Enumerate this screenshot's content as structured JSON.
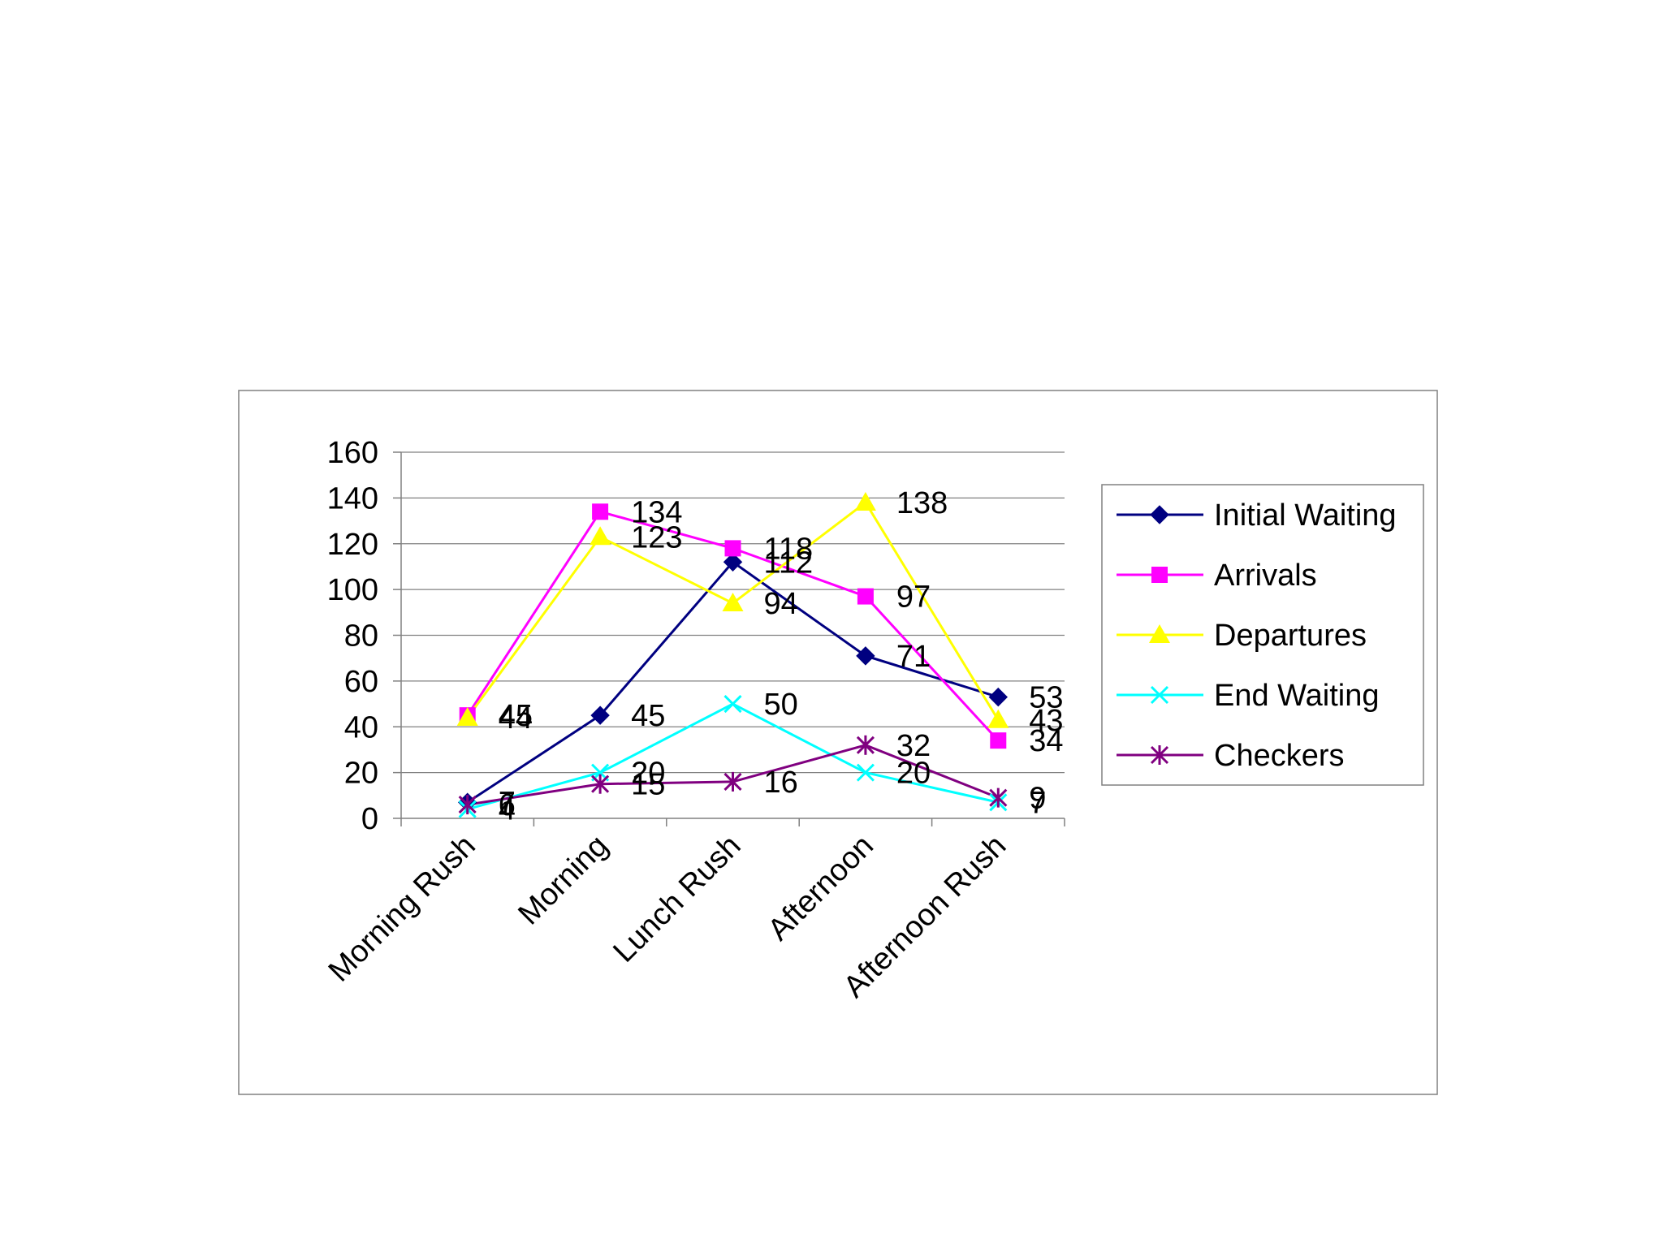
{
  "chart_data": {
    "type": "line",
    "categories": [
      "Morning Rush",
      "Morning",
      "Lunch Rush",
      "Afternoon",
      "Afternoon Rush"
    ],
    "ylim": [
      0,
      160
    ],
    "yticks": [
      0,
      20,
      40,
      60,
      80,
      100,
      120,
      140,
      160
    ],
    "grid": true,
    "legend_position": "right",
    "series": [
      {
        "name": "Initial Waiting",
        "values": [
          7,
          45,
          112,
          71,
          53
        ],
        "color": "#000080",
        "marker": "diamond"
      },
      {
        "name": "Arrivals",
        "values": [
          45,
          134,
          118,
          97,
          34
        ],
        "color": "#FF00FF",
        "marker": "square"
      },
      {
        "name": "Departures",
        "values": [
          44,
          123,
          94,
          138,
          43
        ],
        "color": "#FFFF00",
        "marker": "triangle"
      },
      {
        "name": "End Waiting",
        "values": [
          4,
          20,
          50,
          20,
          7
        ],
        "color": "#00FFFF",
        "marker": "x"
      },
      {
        "name": "Checkers",
        "values": [
          6,
          15,
          16,
          32,
          9
        ],
        "color": "#800080",
        "marker": "star"
      }
    ]
  }
}
